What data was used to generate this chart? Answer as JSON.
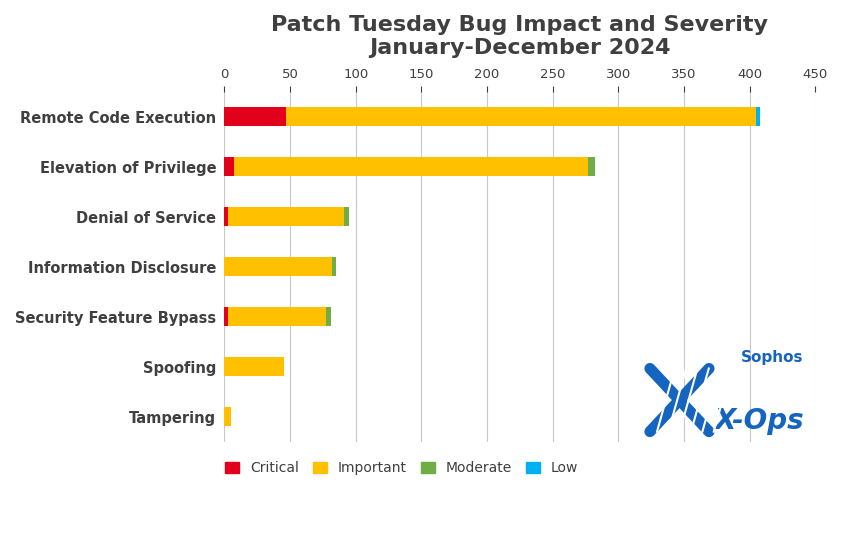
{
  "title": "Patch Tuesday Bug Impact and Severity\nJanuary-December 2024",
  "categories": [
    "Remote Code Execution",
    "Elevation of Privilege",
    "Denial of Service",
    "Information Disclosure",
    "Security Feature Bypass",
    "Spoofing",
    "Tampering"
  ],
  "segments": {
    "Critical": [
      47,
      7,
      3,
      0,
      3,
      0,
      0
    ],
    "Important": [
      358,
      270,
      88,
      82,
      74,
      45,
      5
    ],
    "Moderate": [
      0,
      5,
      4,
      3,
      4,
      0,
      0
    ],
    "Low": [
      3,
      0,
      0,
      0,
      0,
      0,
      0
    ]
  },
  "colors": {
    "Critical": "#e3001b",
    "Important": "#ffc000",
    "Moderate": "#70ad47",
    "Low": "#00b0f0"
  },
  "xlim": [
    0,
    450
  ],
  "xticks": [
    0,
    50,
    100,
    150,
    200,
    250,
    300,
    350,
    400,
    450
  ],
  "title_fontsize": 16,
  "label_fontsize": 10.5,
  "tick_fontsize": 9.5,
  "legend_fontsize": 10,
  "background_color": "#ffffff",
  "grid_color": "#c8c8c8",
  "sophos_color": "#1565c0",
  "bar_height": 0.38
}
